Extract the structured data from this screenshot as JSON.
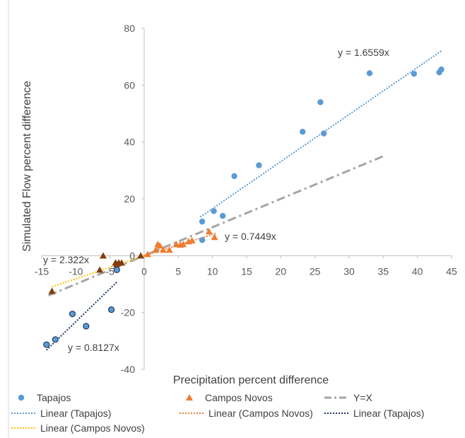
{
  "chart_data": {
    "type": "scatter",
    "xlabel": "Precipitation percent difference",
    "ylabel": "Simulated Flow percent difference",
    "xlim": [
      -15,
      45
    ],
    "ylim": [
      -40,
      80
    ],
    "xticks": [
      "-15",
      "-10",
      "-5",
      "0",
      "5",
      "10",
      "15",
      "20",
      "25",
      "30",
      "35",
      "40",
      "45"
    ],
    "yticks": [
      "-40",
      "-20",
      "0",
      "20",
      "40",
      "60",
      "80"
    ],
    "grid": false,
    "legend_position": "bottom",
    "series": [
      {
        "name": "Tapajos",
        "marker": "circle",
        "color": "#5B9BD5",
        "points": [
          [
            8.5,
            12
          ],
          [
            8.5,
            5.5
          ],
          [
            10.2,
            15.7
          ],
          [
            11.5,
            14
          ],
          [
            13.2,
            28
          ],
          [
            16.8,
            31.8
          ],
          [
            23.2,
            43.6
          ],
          [
            25.8,
            54
          ],
          [
            26.3,
            43
          ],
          [
            33,
            64.2
          ],
          [
            39.5,
            64
          ],
          [
            43.2,
            64.5
          ],
          [
            43.5,
            65.5
          ]
        ]
      },
      {
        "name": "Campos Novos",
        "marker": "triangle",
        "color": "#ED7D31",
        "points": [
          [
            0.5,
            0.5
          ],
          [
            1.7,
            2
          ],
          [
            2,
            4
          ],
          [
            2.3,
            3.5
          ],
          [
            2.8,
            2
          ],
          [
            3.7,
            2
          ],
          [
            4.7,
            4
          ],
          [
            5.3,
            3.8
          ],
          [
            5.7,
            4
          ],
          [
            6.5,
            5
          ],
          [
            7,
            5.3
          ],
          [
            9.5,
            8.5
          ],
          [
            10.3,
            6.5
          ]
        ]
      },
      {
        "name": "Tapajos",
        "marker": "circle-outlined",
        "color": "#5B9BD5",
        "points": [
          [
            -14.3,
            -31.3
          ],
          [
            -13,
            -29.5
          ],
          [
            -10.5,
            -20.5
          ],
          [
            -8.5,
            -24.8
          ],
          [
            -4.8,
            -19
          ],
          [
            -4,
            -5
          ]
        ]
      },
      {
        "name": "Campos Novos",
        "marker": "triangle-dark",
        "color": "#843C0C",
        "points": [
          [
            -13.5,
            -12.5
          ],
          [
            -6.5,
            -5
          ],
          [
            -6,
            0
          ],
          [
            -4.2,
            -2.5
          ],
          [
            -4,
            -3
          ],
          [
            -3.7,
            -2.5
          ],
          [
            -3.3,
            -2.5
          ],
          [
            -0.5,
            0
          ]
        ]
      }
    ],
    "trendlines": [
      {
        "name": "Linear (Tapajos)",
        "style": "dotted",
        "color": "#5B9BD5",
        "slope": 1.6559,
        "x_range": [
          8.2,
          43.5
        ],
        "label": "y = 1.6559x"
      },
      {
        "name": "Linear (Campos Novos)",
        "style": "dotted",
        "color": "#ED7D31",
        "slope": 0.7449,
        "x_range": [
          0,
          10.5
        ],
        "label": "y = 0.7449x"
      },
      {
        "name": "Linear (Tapajos)",
        "style": "dotted",
        "color": "#203864",
        "slope": 2.322,
        "x_range": [
          -14.3,
          -4.0
        ],
        "label": "y = 2.322x"
      },
      {
        "name": "Linear (Campos Novos)",
        "style": "dotted",
        "color": "#FFC000",
        "slope": 0.8127,
        "x_range": [
          -13.5,
          0
        ],
        "label": "y = 0.8127x"
      }
    ],
    "reference_line": {
      "name": "Y=X",
      "style": "dash-dot",
      "color": "#A5A5A5",
      "x_range": [
        -14,
        35.2
      ]
    },
    "legend": [
      "Tapajos",
      "Campos Novos",
      "Y=X",
      "Linear (Tapajos)",
      "Linear (Campos Novos)",
      "Linear (Tapajos)",
      "Linear (Campos Novos)"
    ]
  }
}
